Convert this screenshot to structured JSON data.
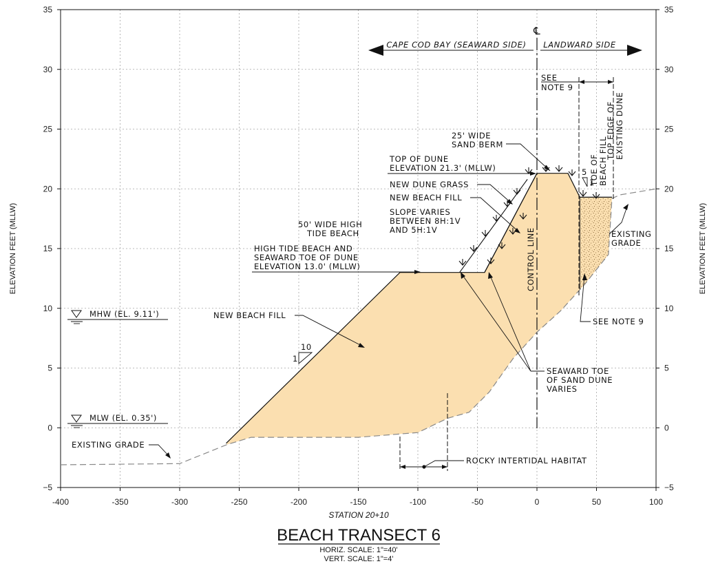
{
  "axes": {
    "x_ticks": [
      "-400",
      "-350",
      "-300",
      "-250",
      "-200",
      "-150",
      "-100",
      "-50",
      "0",
      "50",
      "100"
    ],
    "y_ticks": [
      "35",
      "30",
      "25",
      "20",
      "15",
      "10",
      "5",
      "0",
      "−5"
    ],
    "y_label_left": "ELEVATION FEET (MLLW)",
    "y_label_right": "ELEVATION FEET (MLLW)",
    "x_caption": "STATION 20+10"
  },
  "title": {
    "main": "BEACH TRANSECT 6",
    "horiz_scale": "HORIZ. SCALE: 1\"=40'",
    "vert_scale": "VERT. SCALE: 1\"=4'"
  },
  "header": {
    "seaward": "CAPE COD BAY (SEAWARD SIDE)",
    "landward": "LANDWARD SIDE",
    "centerline_symbol": "℄"
  },
  "labels": {
    "see_note_9_top": [
      "SEE",
      "NOTE 9"
    ],
    "toe_of_beach_fill": [
      "TOE OF",
      "BEACH FILL"
    ],
    "top_edge_existing_dune": [
      "TOP EDGE OF",
      "EXISTING DUNE"
    ],
    "sand_berm": [
      "25' WIDE",
      "SAND BERM"
    ],
    "top_of_dune": [
      "TOP OF DUNE",
      "ELEVATION 21.3' (MLLW)"
    ],
    "new_dune_grass": "NEW DUNE GRASS",
    "new_beach_fill_upper": "NEW BEACH FILL",
    "slope_varies": [
      "SLOPE VARIES",
      "BETWEEN 8H:1V",
      "AND 5H:1V"
    ],
    "high_tide_beach": [
      "50' WIDE HIGH",
      "TIDE BEACH"
    ],
    "seaward_toe_dune": [
      "HIGH TIDE BEACH AND",
      "SEAWARD TOE OF DUNE",
      "ELEVATION 13.0' (MLLW)"
    ],
    "control_line": "CONTROL LINE",
    "existing_grade_right": [
      "EXISTING",
      "GRADE"
    ],
    "see_note_9_right": "SEE NOTE 9",
    "new_beach_fill_main": "NEW BEACH FILL",
    "seaward_toe_sand_dune": [
      "SEAWARD TOE",
      "OF SAND DUNE",
      "VARIES"
    ],
    "mhw": "MHW  (EL. 9.11')",
    "mlw": "MLW  (EL. 0.35')",
    "existing_grade_left": "EXISTING GRADE",
    "rocky_habitat": "ROCKY INTERTIDAL HABITAT",
    "slope_10": "10",
    "slope_1_left": "1",
    "slope_5": "5",
    "slope_1_right": "1"
  },
  "colors": {
    "fill": "#fbdfb0",
    "stipple": "#8a6a3a",
    "line": "#111111",
    "grid": "#9a9a9a",
    "existing_grade": "#888888"
  },
  "diagram_data": {
    "x_range": [
      -400,
      100
    ],
    "y_range": [
      -5,
      35
    ],
    "beach_fill_profile": [
      [
        -261,
        -1.3
      ],
      [
        -115,
        13.0
      ],
      [
        -65,
        13.0
      ],
      [
        -44,
        13.0
      ],
      [
        0,
        21.3
      ],
      [
        26,
        21.3
      ],
      [
        36,
        19.3
      ],
      [
        63,
        19.3
      ]
    ],
    "existing_grade": [
      [
        -400,
        -3.1
      ],
      [
        -300,
        -3.0
      ],
      [
        -260,
        -1.4
      ],
      [
        -240,
        -0.8
      ],
      [
        -150,
        -0.8
      ],
      [
        -100,
        -0.4
      ],
      [
        -75,
        0.8
      ],
      [
        -57,
        1.3
      ],
      [
        -40,
        3.0
      ],
      [
        -20,
        5.8
      ],
      [
        0,
        8.0
      ],
      [
        20,
        9.8
      ],
      [
        40,
        12.0
      ],
      [
        60,
        14.5
      ],
      [
        63,
        19.2
      ],
      [
        70,
        19.5
      ],
      [
        100,
        20.0
      ]
    ],
    "mhw_elevation": 9.11,
    "mlw_elevation": 0.35,
    "top_of_dune_elevation": 21.3,
    "high_tide_beach_elevation": 13.0,
    "rocky_habitat_x": [
      -115,
      -75
    ]
  }
}
